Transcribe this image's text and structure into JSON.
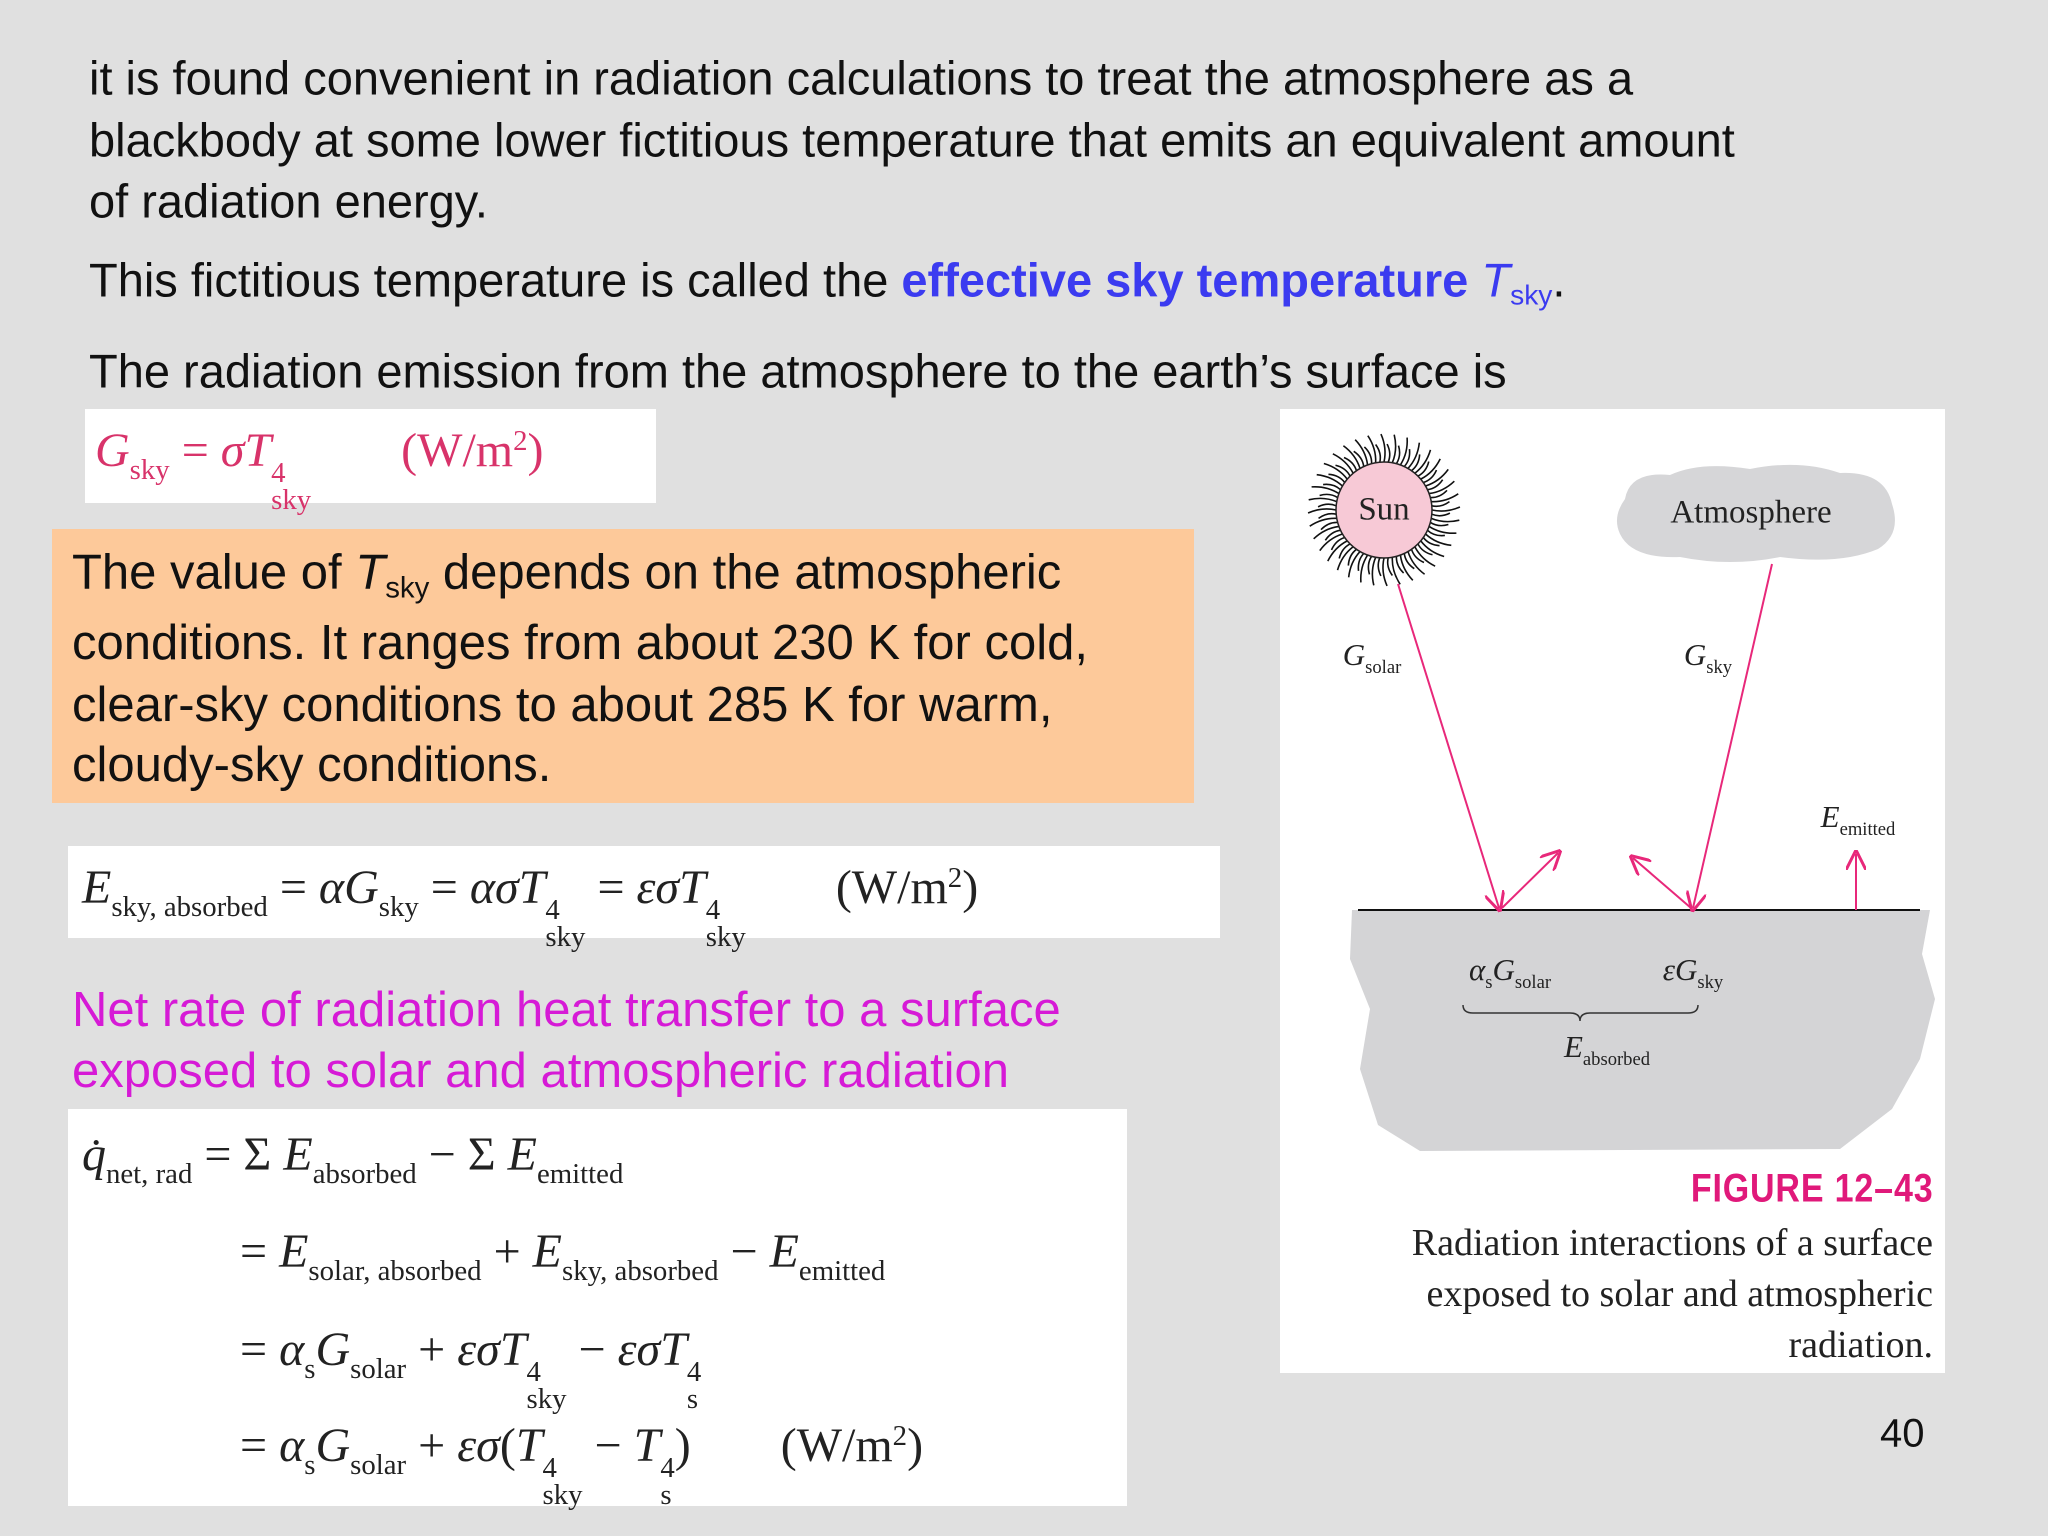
{
  "intro": [
    "it is found convenient in radiation calculations to treat the atmosphere as a",
    "blackbody at some lower fictitious temperature that emits an equivalent amount",
    "of radiation energy."
  ],
  "definition": {
    "text": "This fictitious temperature is called the ",
    "term": "effective sky temperature",
    "symbol": "T",
    "subscript": "sky",
    "end": "."
  },
  "emission_intro": "The radiation emission from the atmosphere to the earth’s surface is",
  "equation_gsky": [
    {
      "v": "G",
      "sub": "sky"
    },
    {
      "o": " = "
    },
    {
      "v": "σT",
      "sub": "sky",
      "sup": "4"
    },
    {
      "u": "(W/m",
      "sup": "2",
      "tail": ")"
    }
  ],
  "note": {
    "first_line": {
      "before": "The value of ",
      "symbol": "T",
      "subscript": "sky",
      "after": " depends on the atmospheric"
    },
    "lines": [
      "conditions. It ranges from about 230 K for cold,",
      "clear-sky conditions to about 285 K for warm,",
      "cloudy-sky conditions."
    ]
  },
  "equation_esky": [
    {
      "v": "E",
      "sub": "sky, absorbed"
    },
    {
      "o": " = "
    },
    {
      "v": "αG",
      "sub": "sky"
    },
    {
      "o": " = "
    },
    {
      "v": "ασT",
      "sub": "sky",
      "sup": "4"
    },
    {
      "o": " = "
    },
    {
      "v": "εσT",
      "sub": "sky",
      "sup": "4"
    },
    {
      "u": "(W/m",
      "sup": "2",
      "tail": ")"
    }
  ],
  "net_rate_heading": [
    "Net rate of radiation heat transfer to a surface",
    "exposed to solar and atmospheric radiation"
  ],
  "equation_qnet": [
    [
      {
        "v": "q̇",
        "sub": "net, rad"
      },
      {
        "o": " = Σ "
      },
      {
        "v": "E",
        "sub": "absorbed"
      },
      {
        "o": " − Σ "
      },
      {
        "v": "E",
        "sub": "emitted"
      }
    ],
    [
      {
        "o": "= "
      },
      {
        "v": "E",
        "sub": "solar, absorbed"
      },
      {
        "o": " + "
      },
      {
        "v": "E",
        "sub": "sky, absorbed"
      },
      {
        "o": " − "
      },
      {
        "v": "E",
        "sub": "emitted"
      }
    ],
    [
      {
        "o": "= "
      },
      {
        "v": "α",
        "sub": "s"
      },
      {
        "v": "G",
        "sub": "solar"
      },
      {
        "o": " + "
      },
      {
        "v": "εσT",
        "sub": "sky",
        "sup": "4"
      },
      {
        "o": " − "
      },
      {
        "v": "εσT",
        "sub": "s",
        "sup": "4"
      }
    ],
    [
      {
        "o": "= "
      },
      {
        "v": "α",
        "sub": "s"
      },
      {
        "v": "G",
        "sub": "solar"
      },
      {
        "o": " + "
      },
      {
        "v": "εσ"
      },
      {
        "o": "("
      },
      {
        "v": "T",
        "sub": "sky",
        "sup": "4"
      },
      {
        "o": " − "
      },
      {
        "v": "T",
        "sub": "s",
        "sup": "4"
      },
      {
        "o": ")"
      },
      {
        "u": "(W/m",
        "sup": "2",
        "tail": ")"
      }
    ]
  ],
  "figure": {
    "sun": "Sun",
    "atmosphere": "Atmosphere",
    "g_solar": [
      {
        "v": "G",
        "sub": "solar"
      }
    ],
    "g_sky": [
      {
        "v": "G",
        "sub": "sky"
      }
    ],
    "e_emitted": [
      {
        "v": "E",
        "sub": "emitted"
      }
    ],
    "alpha_g_solar": [
      {
        "v": "α",
        "sub": "s"
      },
      {
        "v": "G",
        "sub": "solar"
      }
    ],
    "epsilon_g_sky": [
      {
        "v": "εG",
        "sub": "sky"
      }
    ],
    "e_absorbed": [
      {
        "v": "E",
        "sub": "absorbed"
      }
    ],
    "caption_title": "FIGURE 12–43",
    "caption_lines": [
      "Radiation interactions of a surface",
      "exposed to solar and atmospheric",
      "radiation."
    ]
  },
  "page_number": "40"
}
